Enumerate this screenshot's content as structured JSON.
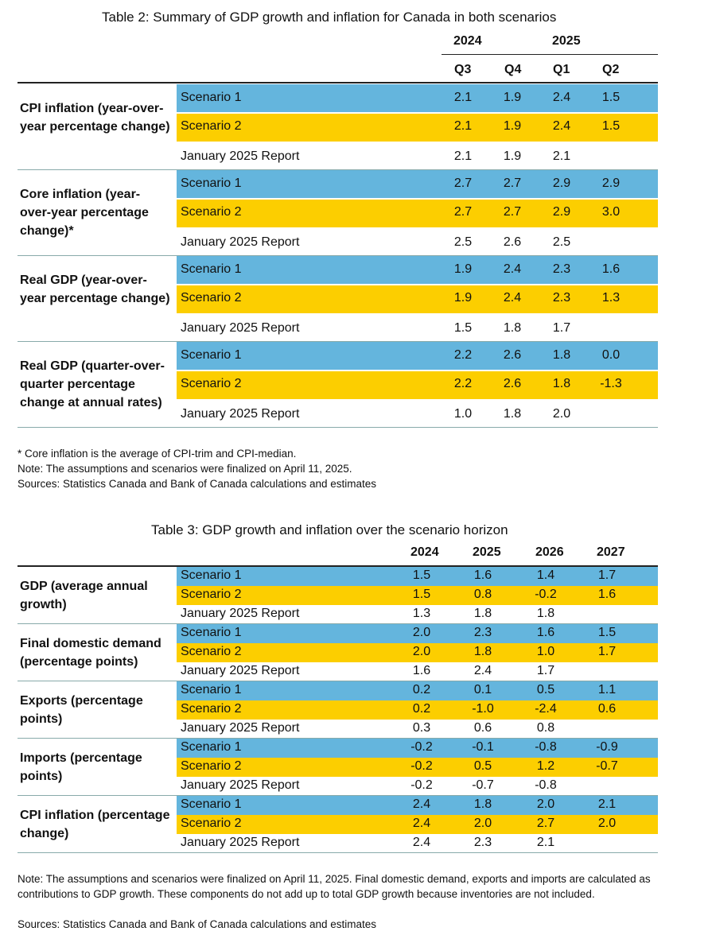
{
  "table2": {
    "title": "Table 2: Summary of GDP growth and inflation for Canada in both scenarios",
    "year_headers": [
      "2024",
      "2025"
    ],
    "quarter_headers": [
      "Q3",
      "Q4",
      "Q1",
      "Q2"
    ],
    "groups": [
      {
        "label": "CPI inflation (year-over-year percentage change)",
        "rows": [
          {
            "name": "Scenario 1",
            "values": [
              "2.1",
              "1.9",
              "2.4",
              "1.5"
            ]
          },
          {
            "name": "Scenario 2",
            "values": [
              "2.1",
              "1.9",
              "2.4",
              "1.5"
            ]
          },
          {
            "name": "January 2025 Report",
            "values": [
              "2.1",
              "1.9",
              "2.1",
              ""
            ]
          }
        ]
      },
      {
        "label": "Core inflation (year-over-year percentage change)*",
        "rows": [
          {
            "name": "Scenario 1",
            "values": [
              "2.7",
              "2.7",
              "2.9",
              "2.9"
            ]
          },
          {
            "name": "Scenario 2",
            "values": [
              "2.7",
              "2.7",
              "2.9",
              "3.0"
            ]
          },
          {
            "name": "January 2025 Report",
            "values": [
              "2.5",
              "2.6",
              "2.5",
              ""
            ]
          }
        ]
      },
      {
        "label": "Real GDP (year-over-year percentage change)",
        "rows": [
          {
            "name": "Scenario 1",
            "values": [
              "1.9",
              "2.4",
              "2.3",
              "1.6"
            ]
          },
          {
            "name": "Scenario 2",
            "values": [
              "1.9",
              "2.4",
              "2.3",
              "1.3"
            ]
          },
          {
            "name": "January 2025 Report",
            "values": [
              "1.5",
              "1.8",
              "1.7",
              ""
            ]
          }
        ]
      },
      {
        "label": "Real GDP (quarter-over-quarter percentage change at annual rates)",
        "rows": [
          {
            "name": "Scenario 1",
            "values": [
              "2.2",
              "2.6",
              "1.8",
              "0.0"
            ]
          },
          {
            "name": "Scenario 2",
            "values": [
              "2.2",
              "2.6",
              "1.8",
              "-1.3"
            ]
          },
          {
            "name": "January 2025 Report",
            "values": [
              "1.0",
              "1.8",
              "2.0",
              ""
            ]
          }
        ]
      }
    ],
    "notes": [
      "* Core inflation is the average of CPI-trim and CPI-median.",
      "Note: The assumptions and scenarios were finalized on April 11, 2025.",
      "Sources: Statistics Canada and Bank of Canada calculations and estimates"
    ]
  },
  "table3": {
    "title": "Table 3: GDP growth and inflation over the scenario horizon",
    "year_headers": [
      "2024",
      "2025",
      "2026",
      "2027"
    ],
    "groups": [
      {
        "label": "GDP (average annual growth)",
        "rows": [
          {
            "name": "Scenario 1",
            "values": [
              "1.5",
              "1.6",
              "1.4",
              "1.7"
            ]
          },
          {
            "name": "Scenario 2",
            "values": [
              "1.5",
              "0.8",
              "-0.2",
              "1.6"
            ]
          },
          {
            "name": "January 2025 Report",
            "values": [
              "1.3",
              "1.8",
              "1.8",
              ""
            ]
          }
        ]
      },
      {
        "label": "Final domestic demand (percentage points)",
        "rows": [
          {
            "name": "Scenario 1",
            "values": [
              "2.0",
              "2.3",
              "1.6",
              "1.5"
            ]
          },
          {
            "name": "Scenario 2",
            "values": [
              "2.0",
              "1.8",
              "1.0",
              "1.7"
            ]
          },
          {
            "name": "January 2025 Report",
            "values": [
              "1.6",
              "2.4",
              "1.7",
              ""
            ]
          }
        ]
      },
      {
        "label": "Exports (percentage points)",
        "rows": [
          {
            "name": "Scenario 1",
            "values": [
              "0.2",
              "0.1",
              "0.5",
              "1.1"
            ]
          },
          {
            "name": "Scenario 2",
            "values": [
              "0.2",
              "-1.0",
              "-2.4",
              "0.6"
            ]
          },
          {
            "name": "January 2025 Report",
            "values": [
              "0.3",
              "0.6",
              "0.8",
              ""
            ]
          }
        ]
      },
      {
        "label": "Imports (percentage points)",
        "rows": [
          {
            "name": "Scenario 1",
            "values": [
              "-0.2",
              "-0.1",
              "-0.8",
              "-0.9"
            ]
          },
          {
            "name": "Scenario 2",
            "values": [
              "-0.2",
              "0.5",
              "1.2",
              "-0.7"
            ]
          },
          {
            "name": "January 2025 Report",
            "values": [
              "-0.2",
              "-0.7",
              "-0.8",
              ""
            ]
          }
        ]
      },
      {
        "label": "CPI inflation (percentage change)",
        "rows": [
          {
            "name": "Scenario 1",
            "values": [
              "2.4",
              "1.8",
              "2.0",
              "2.1"
            ]
          },
          {
            "name": "Scenario 2",
            "values": [
              "2.4",
              "2.0",
              "2.7",
              "2.0"
            ]
          },
          {
            "name": "January 2025 Report",
            "values": [
              "2.4",
              "2.3",
              "2.1",
              ""
            ]
          }
        ]
      }
    ],
    "notes": [
      "Note: The assumptions and scenarios were finalized on April 11, 2025. Final domestic demand, exports and imports are calculated as contributions to GDP growth. These components do not add up to total GDP growth because inventories are not included.",
      "Sources: Statistics Canada and Bank of Canada calculations and estimates"
    ]
  },
  "colors": {
    "scenario1": "#64b5dd",
    "scenario2": "#fcce00",
    "rule": "#222222"
  }
}
